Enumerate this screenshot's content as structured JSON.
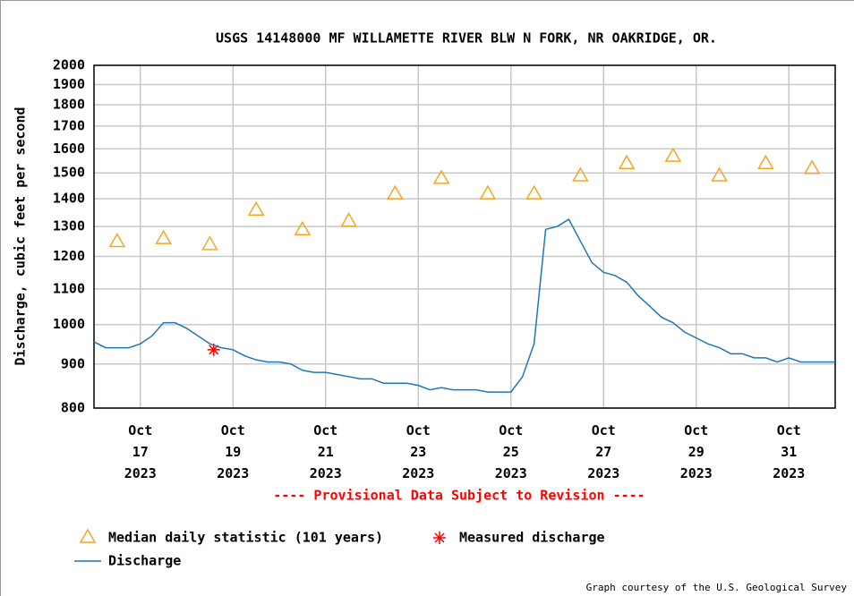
{
  "chart_data": {
    "type": "line",
    "title": "USGS 14148000 MF WILLAMETTE RIVER BLW N FORK, NR OAKRIDGE, OR.",
    "ylabel": "Discharge, cubic feet per second",
    "annotation": "---- Provisional Data Subject to Revision ----",
    "credit": "Graph courtesy of the U.S. Geological Survey",
    "ylog": true,
    "grid": true,
    "ylim": [
      800,
      2000
    ],
    "yticks": [
      800,
      900,
      1000,
      1100,
      1200,
      1300,
      1400,
      1500,
      1600,
      1700,
      1800,
      1900,
      2000
    ],
    "xlim": [
      "2023-10-16T00:00",
      "2023-11-01T00:00"
    ],
    "xticks": [
      {
        "value": "2023-10-17",
        "label": "Oct\n17\n2023"
      },
      {
        "value": "2023-10-19",
        "label": "Oct\n19\n2023"
      },
      {
        "value": "2023-10-21",
        "label": "Oct\n21\n2023"
      },
      {
        "value": "2023-10-23",
        "label": "Oct\n23\n2023"
      },
      {
        "value": "2023-10-25",
        "label": "Oct\n25\n2023"
      },
      {
        "value": "2023-10-27",
        "label": "Oct\n27\n2023"
      },
      {
        "value": "2023-10-29",
        "label": "Oct\n29\n2023"
      },
      {
        "value": "2023-10-31",
        "label": "Oct\n31\n2023"
      }
    ],
    "series": [
      {
        "name": "Median daily statistic (101 years)",
        "marker": "triangle",
        "color": "#f5a623",
        "x": [
          "2023-10-16T12:00",
          "2023-10-17T12:00",
          "2023-10-18T12:00",
          "2023-10-19T12:00",
          "2023-10-20T12:00",
          "2023-10-21T12:00",
          "2023-10-22T12:00",
          "2023-10-23T12:00",
          "2023-10-24T12:00",
          "2023-10-25T12:00",
          "2023-10-26T12:00",
          "2023-10-27T12:00",
          "2023-10-28T12:00",
          "2023-10-29T12:00",
          "2023-10-30T12:00",
          "2023-10-31T12:00"
        ],
        "values": [
          1250,
          1260,
          1240,
          1360,
          1290,
          1320,
          1420,
          1480,
          1420,
          1420,
          1490,
          1540,
          1570,
          1490,
          1540,
          1520
        ]
      },
      {
        "name": "Measured discharge",
        "marker": "asterisk",
        "color": "#ff0000",
        "x": [
          "2023-10-18T14:00"
        ],
        "values": [
          935
        ]
      },
      {
        "name": "Discharge",
        "marker": "line",
        "color": "#1f77b4",
        "x": [
          "2023-10-16T00:00",
          "2023-10-16T06:00",
          "2023-10-16T12:00",
          "2023-10-16T18:00",
          "2023-10-17T00:00",
          "2023-10-17T06:00",
          "2023-10-17T12:00",
          "2023-10-17T18:00",
          "2023-10-18T00:00",
          "2023-10-18T06:00",
          "2023-10-18T12:00",
          "2023-10-18T18:00",
          "2023-10-19T00:00",
          "2023-10-19T06:00",
          "2023-10-19T12:00",
          "2023-10-19T18:00",
          "2023-10-20T00:00",
          "2023-10-20T06:00",
          "2023-10-20T12:00",
          "2023-10-20T18:00",
          "2023-10-21T00:00",
          "2023-10-21T06:00",
          "2023-10-21T12:00",
          "2023-10-21T18:00",
          "2023-10-22T00:00",
          "2023-10-22T06:00",
          "2023-10-22T12:00",
          "2023-10-22T18:00",
          "2023-10-23T00:00",
          "2023-10-23T06:00",
          "2023-10-23T12:00",
          "2023-10-23T18:00",
          "2023-10-24T00:00",
          "2023-10-24T06:00",
          "2023-10-24T12:00",
          "2023-10-24T18:00",
          "2023-10-25T00:00",
          "2023-10-25T06:00",
          "2023-10-25T12:00",
          "2023-10-25T18:00",
          "2023-10-26T00:00",
          "2023-10-26T06:00",
          "2023-10-26T12:00",
          "2023-10-26T18:00",
          "2023-10-27T00:00",
          "2023-10-27T06:00",
          "2023-10-27T12:00",
          "2023-10-27T18:00",
          "2023-10-28T00:00",
          "2023-10-28T06:00",
          "2023-10-28T12:00",
          "2023-10-28T18:00",
          "2023-10-29T00:00",
          "2023-10-29T06:00",
          "2023-10-29T12:00",
          "2023-10-29T18:00",
          "2023-10-30T00:00",
          "2023-10-30T06:00",
          "2023-10-30T12:00",
          "2023-10-30T18:00",
          "2023-10-31T00:00",
          "2023-10-31T06:00",
          "2023-10-31T12:00",
          "2023-10-31T18:00",
          "2023-11-01T00:00"
        ],
        "values": [
          955,
          940,
          940,
          940,
          950,
          970,
          1005,
          1005,
          990,
          970,
          950,
          940,
          935,
          920,
          910,
          905,
          905,
          900,
          885,
          880,
          880,
          875,
          870,
          865,
          865,
          855,
          855,
          855,
          850,
          840,
          845,
          840,
          840,
          840,
          835,
          835,
          835,
          870,
          950,
          1290,
          1300,
          1325,
          1250,
          1180,
          1150,
          1140,
          1120,
          1080,
          1050,
          1020,
          1005,
          980,
          965,
          950,
          940,
          925,
          925,
          915,
          915,
          905,
          915,
          905,
          905,
          905,
          905
        ]
      }
    ]
  }
}
